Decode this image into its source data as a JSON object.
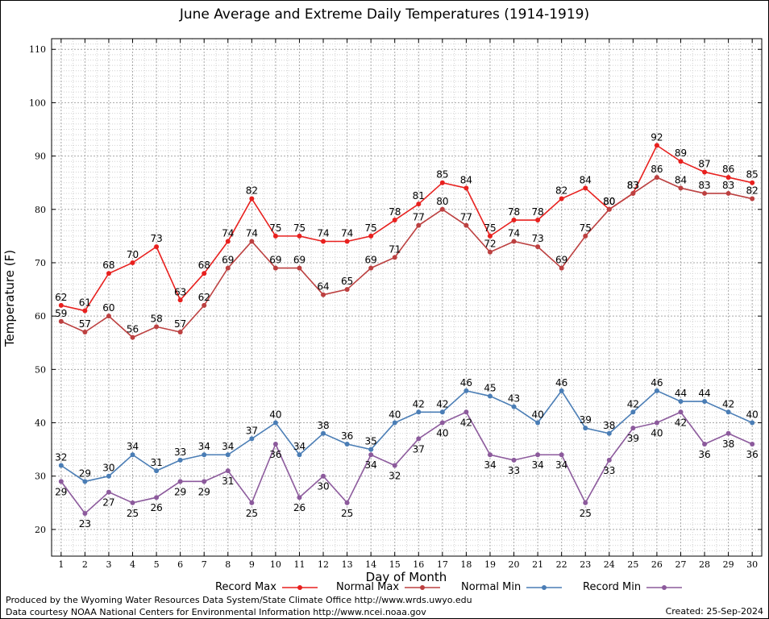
{
  "title": "June Average and Extreme Daily Temperatures (1914-1919)",
  "footer": {
    "produced_by": "Produced by the Wyoming Water Resources Data System/State Climate Office http://www.wrds.uwyo.edu",
    "courtesy": "Data courtesy NOAA National Centers for Environmental Information http://www.ncei.noaa.gov",
    "created": "Created:  25-Sep-2024"
  },
  "chart_data": {
    "type": "line",
    "title": "June Average and Extreme Daily Temperatures (1914-1919)",
    "xlabel": "Day of Month",
    "ylabel": "Temperature (F)",
    "x": [
      1,
      2,
      3,
      4,
      5,
      6,
      7,
      8,
      9,
      10,
      11,
      12,
      13,
      14,
      15,
      16,
      17,
      18,
      19,
      20,
      21,
      22,
      23,
      24,
      25,
      26,
      27,
      28,
      29,
      30
    ],
    "xlim": [
      0.6,
      30.4
    ],
    "ylim": [
      15,
      112
    ],
    "yticks": [
      20,
      30,
      40,
      50,
      60,
      70,
      80,
      90,
      100,
      110
    ],
    "grid": true,
    "legend_position": "bottom",
    "series": [
      {
        "name": "Record Max",
        "color": "#e8201e",
        "values": [
          62,
          61,
          68,
          70,
          73,
          63,
          68,
          74,
          82,
          75,
          75,
          74,
          74,
          75,
          78,
          81,
          85,
          84,
          75,
          78,
          78,
          82,
          84,
          80,
          83,
          92,
          89,
          87,
          86,
          85
        ]
      },
      {
        "name": "Normal Max",
        "color": "#bc4040",
        "values": [
          59,
          57,
          60,
          56,
          58,
          57,
          62,
          69,
          74,
          69,
          69,
          64,
          65,
          69,
          71,
          77,
          80,
          77,
          72,
          74,
          73,
          69,
          75,
          80,
          83,
          86,
          84,
          83,
          83,
          82
        ]
      },
      {
        "name": "Normal Min",
        "color": "#4a7db5",
        "values": [
          32,
          29,
          30,
          34,
          31,
          33,
          34,
          34,
          37,
          40,
          34,
          38,
          36,
          35,
          40,
          42,
          42,
          46,
          45,
          43,
          40,
          46,
          39,
          38,
          42,
          46,
          44,
          44,
          42,
          40
        ]
      },
      {
        "name": "Record Min",
        "color": "#8c5a9c",
        "values": [
          29,
          23,
          27,
          25,
          26,
          29,
          29,
          31,
          25,
          36,
          26,
          30,
          25,
          34,
          32,
          37,
          40,
          42,
          34,
          33,
          34,
          34,
          25,
          33,
          39,
          40,
          42,
          36,
          38,
          36
        ]
      }
    ]
  }
}
